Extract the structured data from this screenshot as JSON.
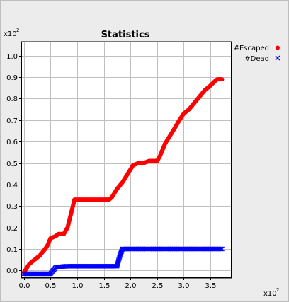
{
  "chart_data": {
    "type": "scatter",
    "title": "Statistics",
    "x_multiplier_base": "x10",
    "x_multiplier_exp": "2",
    "y_multiplier_base": "x10",
    "y_multiplier_exp": "2",
    "xlim": [
      -0.05,
      3.9
    ],
    "ylim": [
      -0.035,
      1.065
    ],
    "x_ticks": [
      0.0,
      0.5,
      1.0,
      1.5,
      2.0,
      2.5,
      3.0,
      3.5
    ],
    "y_ticks": [
      0.0,
      0.1,
      0.2,
      0.3,
      0.4,
      0.5,
      0.6,
      0.7,
      0.8,
      0.9,
      1.0
    ],
    "x_tick_labels": [
      "0.0",
      "0.5",
      "1.0",
      "1.5",
      "2.0",
      "2.5",
      "3.0",
      "3.5"
    ],
    "y_tick_labels": [
      "0.0",
      "0.1",
      "0.2",
      "0.3",
      "0.4",
      "0.5",
      "0.6",
      "0.7",
      "0.8",
      "0.9",
      "1.0"
    ],
    "grid": true,
    "legend_position": "right-outside-top",
    "series": [
      {
        "name": "#Escaped",
        "marker": "circle",
        "color": "#ff0000",
        "points": [
          [
            0.0,
            -0.01
          ],
          [
            0.05,
            0.01
          ],
          [
            0.1,
            0.03
          ],
          [
            0.2,
            0.05
          ],
          [
            0.3,
            0.07
          ],
          [
            0.4,
            0.1
          ],
          [
            0.45,
            0.12
          ],
          [
            0.5,
            0.15
          ],
          [
            0.6,
            0.16
          ],
          [
            0.65,
            0.17
          ],
          [
            0.75,
            0.17
          ],
          [
            0.82,
            0.2
          ],
          [
            0.88,
            0.26
          ],
          [
            0.92,
            0.3
          ],
          [
            0.95,
            0.33
          ],
          [
            1.1,
            0.33
          ],
          [
            1.3,
            0.33
          ],
          [
            1.5,
            0.33
          ],
          [
            1.6,
            0.33
          ],
          [
            1.65,
            0.34
          ],
          [
            1.75,
            0.38
          ],
          [
            1.85,
            0.41
          ],
          [
            1.95,
            0.45
          ],
          [
            2.05,
            0.49
          ],
          [
            2.15,
            0.5
          ],
          [
            2.25,
            0.5
          ],
          [
            2.35,
            0.51
          ],
          [
            2.5,
            0.51
          ],
          [
            2.55,
            0.53
          ],
          [
            2.65,
            0.59
          ],
          [
            2.75,
            0.63
          ],
          [
            2.85,
            0.67
          ],
          [
            2.92,
            0.7
          ],
          [
            3.0,
            0.73
          ],
          [
            3.1,
            0.75
          ],
          [
            3.2,
            0.78
          ],
          [
            3.3,
            0.81
          ],
          [
            3.4,
            0.84
          ],
          [
            3.5,
            0.86
          ],
          [
            3.58,
            0.88
          ],
          [
            3.63,
            0.89
          ],
          [
            3.72,
            0.89
          ]
        ]
      },
      {
        "name": "#Dead",
        "marker": "x",
        "color": "#0000ff",
        "points": [
          [
            0.0,
            -0.015
          ],
          [
            0.15,
            -0.015
          ],
          [
            0.35,
            -0.015
          ],
          [
            0.5,
            -0.015
          ],
          [
            0.55,
            0.0
          ],
          [
            0.6,
            0.015
          ],
          [
            0.8,
            0.02
          ],
          [
            1.1,
            0.02
          ],
          [
            1.4,
            0.02
          ],
          [
            1.6,
            0.02
          ],
          [
            1.75,
            0.02
          ],
          [
            1.78,
            0.05
          ],
          [
            1.82,
            0.08
          ],
          [
            1.85,
            0.1
          ],
          [
            2.0,
            0.1
          ],
          [
            2.3,
            0.1
          ],
          [
            2.6,
            0.1
          ],
          [
            2.9,
            0.1
          ],
          [
            3.2,
            0.1
          ],
          [
            3.5,
            0.1
          ],
          [
            3.72,
            0.1
          ]
        ]
      }
    ]
  }
}
